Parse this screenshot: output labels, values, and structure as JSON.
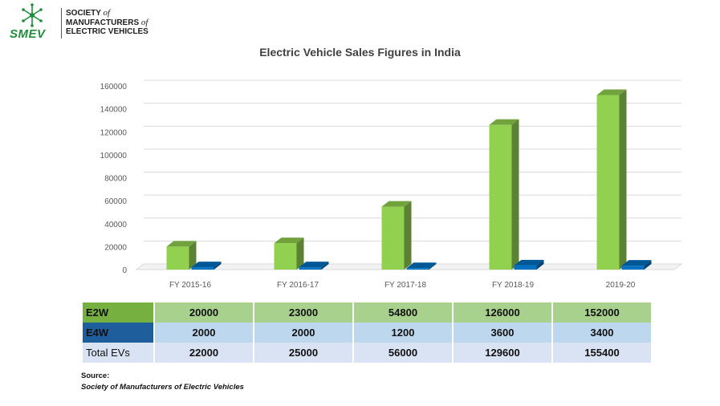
{
  "logo": {
    "mark": "SMEV",
    "lines": [
      "SOCIETY",
      "of",
      "MANUFACTURERS",
      "of",
      "ELECTRIC VEHICLES"
    ],
    "colors": {
      "mark": "#1e8f3a"
    }
  },
  "chart_data": {
    "type": "bar",
    "title": "Electric Vehicle Sales Figures in India",
    "categories": [
      "FY 2015-16",
      "FY 2016-17",
      "FY 2017-18",
      "FY 2018-19",
      "2019-20"
    ],
    "series": [
      {
        "name": "E2W",
        "values": [
          20000,
          23000,
          54800,
          126000,
          152000
        ],
        "color": "#92d050"
      },
      {
        "name": "E4W",
        "values": [
          2000,
          2000,
          1200,
          3600,
          3400
        ],
        "color": "#0070c0"
      }
    ],
    "yticks": [
      "0",
      "20000",
      "40000",
      "60000",
      "80000",
      "100000",
      "120000",
      "140000",
      "160000"
    ],
    "ylim": [
      0,
      160000
    ],
    "grid": true,
    "style": "3d-column"
  },
  "table": {
    "rows": [
      {
        "label": "E2W",
        "values": [
          "20000",
          "23000",
          "54800",
          "126000",
          "152000"
        ]
      },
      {
        "label": "E4W",
        "values": [
          "2000",
          "2000",
          "1200",
          "3600",
          "3400"
        ]
      },
      {
        "label": "Total EVs",
        "values": [
          "22000",
          "25000",
          "56000",
          "129600",
          "155400"
        ]
      }
    ]
  },
  "source": {
    "label": "Source:",
    "text": "Society of Manufacturers of Electric Vehicles"
  }
}
